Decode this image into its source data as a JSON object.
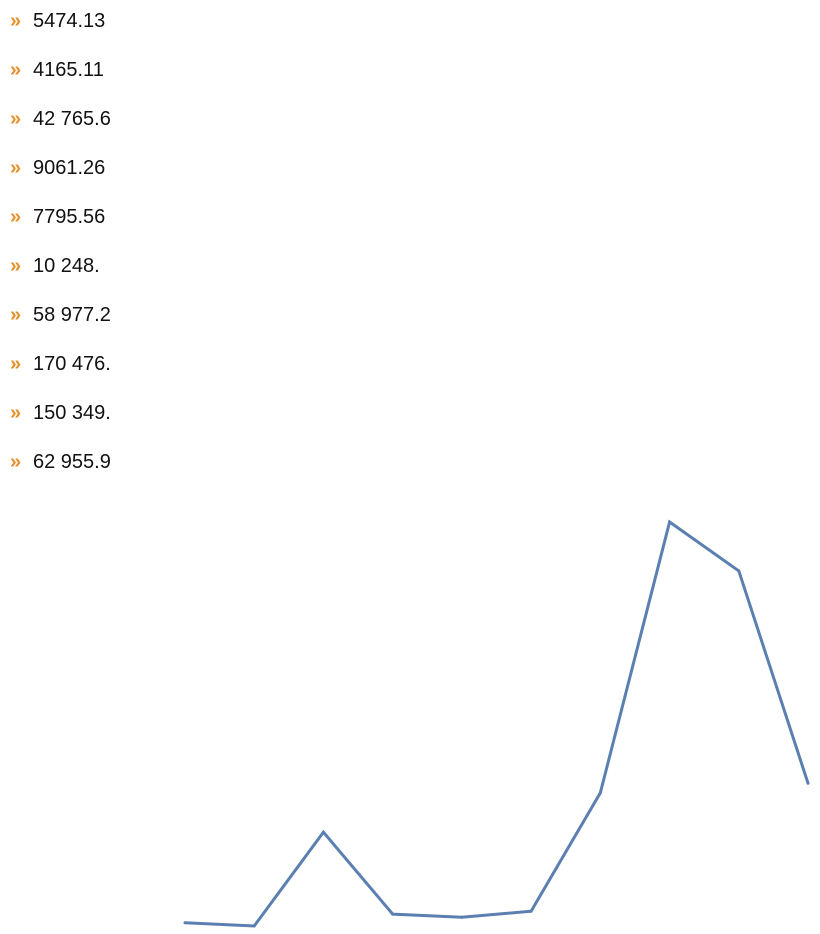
{
  "bullet": {
    "glyph": "»",
    "color": "#e8912a",
    "icon": "double-chevron-right-icon"
  },
  "values": [
    "5474.13",
    "4165.11",
    "42 765.6",
    "9061.26",
    "7795.56",
    "10 248.",
    "58 977.2",
    "170 476.",
    "150 349.",
    "62 955.9"
  ],
  "chart_data": {
    "type": "line",
    "title": "",
    "xlabel": "",
    "ylabel": "",
    "x": [
      1,
      2,
      3,
      4,
      5,
      6,
      7,
      8,
      9,
      10
    ],
    "series": [
      {
        "name": "",
        "color": "#5b7fb0",
        "values": [
          5474.13,
          4165.11,
          42765.6,
          9061.26,
          7795.56,
          10248.0,
          58977.2,
          170476.0,
          150349.0,
          62955.9
        ]
      }
    ],
    "axes_visible": false,
    "grid": false
  }
}
